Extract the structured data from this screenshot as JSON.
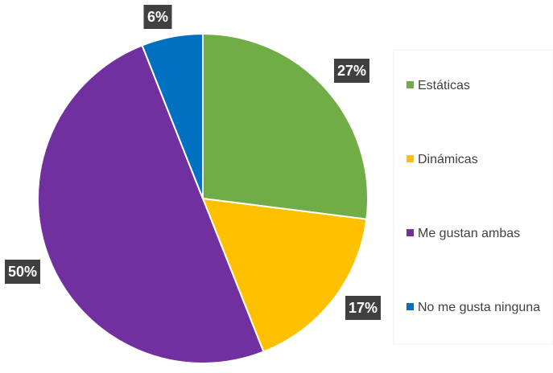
{
  "chart_data": {
    "type": "pie",
    "title": "",
    "categories": [
      "Estáticas",
      "Dinámicas",
      "Me gustan ambas",
      "No me gusta ninguna"
    ],
    "values": [
      27,
      17,
      50,
      6
    ],
    "data_labels": [
      "27%",
      "17%",
      "50%",
      "6%"
    ],
    "colors": [
      "#70AD47",
      "#FFC000",
      "#7030A0",
      "#0070C0"
    ],
    "legend_position": "right",
    "label_style": "dark callout boxes outside the pie"
  }
}
